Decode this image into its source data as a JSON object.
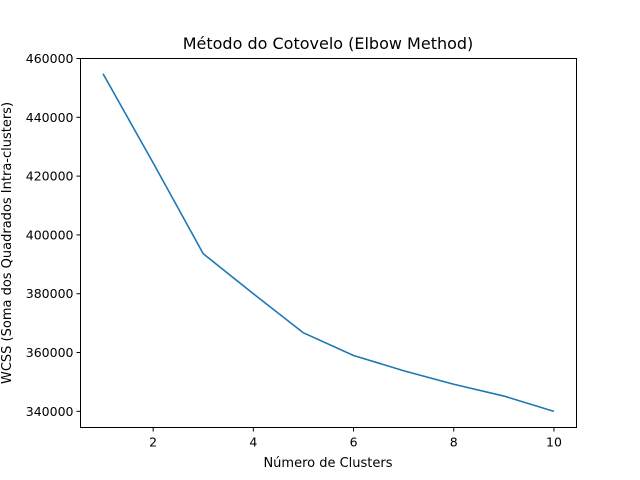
{
  "chart_data": {
    "type": "line",
    "title": "Método do Cotovelo (Elbow Method)",
    "xlabel": "Número de Clusters",
    "ylabel": "WCSS (Soma dos Quadrados Intra-clusters)",
    "x": [
      1,
      2,
      3,
      4,
      5,
      6,
      7,
      8,
      9,
      10
    ],
    "series": [
      {
        "values": [
          454800,
          424500,
          393600,
          380000,
          366700,
          359000,
          353800,
          349200,
          345200,
          340000
        ],
        "color": "#1f77b4"
      }
    ],
    "xlim": [
      0.55,
      10.45
    ],
    "ylim": [
      334500,
      460000
    ],
    "xticks": [
      2,
      4,
      6,
      8,
      10
    ],
    "yticks": [
      340000,
      360000,
      380000,
      400000,
      420000,
      440000,
      460000
    ],
    "xtick_labels": [
      "2",
      "4",
      "6",
      "8",
      "10"
    ],
    "ytick_labels": [
      "340000",
      "360000",
      "380000",
      "400000",
      "420000",
      "440000",
      "460000"
    ],
    "grid": false,
    "legend": "none"
  }
}
